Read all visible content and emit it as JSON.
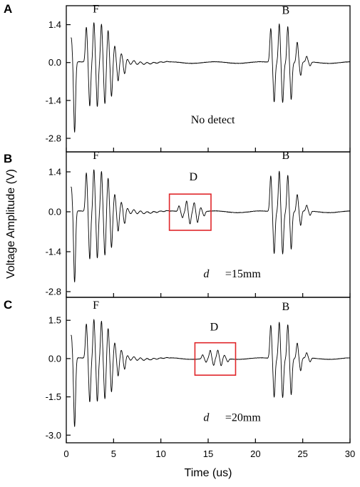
{
  "chart_data": {
    "type": "line",
    "xlabel": "Time (us)",
    "ylabel": "Voltage Amplitude (V)",
    "xlim": [
      0,
      30
    ],
    "xticks": [
      0,
      5,
      10,
      15,
      20,
      25,
      30
    ],
    "xtick_labels": [
      "0",
      "5",
      "10",
      "15",
      "20",
      "25",
      "30"
    ],
    "panels": [
      {
        "letter": "A",
        "ylim": [
          -3.3,
          2.1
        ],
        "yticks": [
          1.4,
          0.0,
          -1.4,
          -2.8
        ],
        "ytick_labels": [
          "1.4",
          "0.0",
          "-1.4",
          "-2.8"
        ],
        "annotations": [
          {
            "text": "F",
            "x": 2.8,
            "y": 1.85
          },
          {
            "text": "B",
            "x": 22.8,
            "y": 1.8
          },
          {
            "text": "No detect",
            "x": 15.5,
            "y": -2.25
          }
        ],
        "front_echo": {
          "peaks": [
            {
              "t": 0.7,
              "pos": 0.9,
              "neg": -2.6
            },
            {
              "t": 2.3,
              "pos": 1.3,
              "neg": -1.6
            },
            {
              "t": 3.1,
              "pos": 1.5,
              "neg": -1.6
            },
            {
              "t": 3.9,
              "pos": 1.45,
              "neg": -1.5
            },
            {
              "t": 4.6,
              "pos": 1.2,
              "neg": -1.25
            },
            {
              "t": 5.3,
              "pos": 0.6,
              "neg": -0.7
            },
            {
              "t": 6.0,
              "pos": 0.3,
              "neg": -0.35
            }
          ]
        },
        "back_echo": {
          "peaks": [
            {
              "t": 21.8,
              "pos": 1.25,
              "neg": -1.45
            },
            {
              "t": 22.7,
              "pos": 1.45,
              "neg": -1.45
            },
            {
              "t": 23.6,
              "pos": 1.35,
              "neg": -1.35
            },
            {
              "t": 24.6,
              "pos": 0.75,
              "neg": -0.5
            },
            {
              "t": 25.6,
              "pos": 0.2,
              "neg": -0.15
            }
          ]
        }
      },
      {
        "letter": "B",
        "ylim": [
          -3.0,
          2.1
        ],
        "yticks": [
          1.4,
          0.0,
          -1.4,
          -2.8
        ],
        "ytick_labels": [
          "1.4",
          "0.0",
          "-1.4",
          "-2.8"
        ],
        "annotations": [
          {
            "text": "F",
            "x": 2.8,
            "y": 1.85
          },
          {
            "text": "D",
            "x": 13.0,
            "y": 1.1
          },
          {
            "text": "B",
            "x": 22.8,
            "y": 1.85
          },
          {
            "text": "d",
            "italic": true,
            "x": 14.5,
            "y": -2.3
          },
          {
            "text": "=15mm",
            "x": 16.8,
            "y": -2.3
          }
        ],
        "defect_box": {
          "x": [
            10.9,
            15.3
          ],
          "y": [
            -0.65,
            0.62
          ]
        },
        "front_echo": {
          "peaks": [
            {
              "t": 0.7,
              "pos": 0.85,
              "neg": -2.5
            },
            {
              "t": 2.3,
              "pos": 1.35,
              "neg": -1.65
            },
            {
              "t": 3.1,
              "pos": 1.5,
              "neg": -1.6
            },
            {
              "t": 3.9,
              "pos": 1.45,
              "neg": -1.5
            },
            {
              "t": 4.6,
              "pos": 1.2,
              "neg": -1.25
            },
            {
              "t": 5.3,
              "pos": 0.6,
              "neg": -0.7
            },
            {
              "t": 6.0,
              "pos": 0.3,
              "neg": -0.35
            }
          ]
        },
        "defect_echo": {
          "peaks": [
            {
              "t": 12.1,
              "pos": 0.2,
              "neg": -0.2
            },
            {
              "t": 12.9,
              "pos": 0.4,
              "neg": -0.4
            },
            {
              "t": 13.7,
              "pos": 0.35,
              "neg": -0.35
            },
            {
              "t": 14.4,
              "pos": 0.15,
              "neg": -0.15
            }
          ]
        },
        "back_echo": {
          "peaks": [
            {
              "t": 21.8,
              "pos": 1.25,
              "neg": -1.45
            },
            {
              "t": 22.7,
              "pos": 1.45,
              "neg": -1.45
            },
            {
              "t": 23.6,
              "pos": 1.3,
              "neg": -1.3
            },
            {
              "t": 24.6,
              "pos": 0.6,
              "neg": -0.5
            },
            {
              "t": 25.6,
              "pos": 0.2,
              "neg": -0.15
            }
          ]
        }
      },
      {
        "letter": "C",
        "ylim": [
          -3.3,
          2.4
        ],
        "yticks": [
          1.5,
          0.0,
          -1.5,
          -3.0
        ],
        "ytick_labels": [
          "1.5",
          "0.0",
          "-1.5",
          "-3.0"
        ],
        "annotations": [
          {
            "text": "F",
            "x": 2.8,
            "y": 1.95
          },
          {
            "text": "D",
            "x": 15.2,
            "y": 1.1
          },
          {
            "text": "B",
            "x": 22.8,
            "y": 1.9
          },
          {
            "text": "d",
            "italic": true,
            "x": 14.5,
            "y": -2.45
          },
          {
            "text": "=20mm",
            "x": 16.8,
            "y": -2.45
          }
        ],
        "defect_box": {
          "x": [
            13.6,
            17.9
          ],
          "y": [
            -0.65,
            0.62
          ]
        },
        "front_echo": {
          "peaks": [
            {
              "t": 0.7,
              "pos": 0.9,
              "neg": -2.7
            },
            {
              "t": 2.3,
              "pos": 1.35,
              "neg": -1.7
            },
            {
              "t": 3.1,
              "pos": 1.55,
              "neg": -1.65
            },
            {
              "t": 3.9,
              "pos": 1.5,
              "neg": -1.55
            },
            {
              "t": 4.6,
              "pos": 1.2,
              "neg": -1.3
            },
            {
              "t": 5.3,
              "pos": 0.6,
              "neg": -0.7
            },
            {
              "t": 6.0,
              "pos": 0.3,
              "neg": -0.35
            }
          ]
        },
        "defect_echo": {
          "peaks": [
            {
              "t": 14.6,
              "pos": 0.15,
              "neg": -0.15
            },
            {
              "t": 15.4,
              "pos": 0.3,
              "neg": -0.3
            },
            {
              "t": 16.2,
              "pos": 0.3,
              "neg": -0.3
            },
            {
              "t": 16.9,
              "pos": 0.12,
              "neg": -0.12
            }
          ]
        },
        "back_echo": {
          "peaks": [
            {
              "t": 21.8,
              "pos": 1.3,
              "neg": -1.5
            },
            {
              "t": 22.7,
              "pos": 1.45,
              "neg": -1.5
            },
            {
              "t": 23.6,
              "pos": 1.35,
              "neg": -1.4
            },
            {
              "t": 24.6,
              "pos": 0.6,
              "neg": -0.5
            },
            {
              "t": 25.6,
              "pos": 0.2,
              "neg": -0.15
            }
          ]
        }
      }
    ]
  },
  "colors": {
    "signal": "#000000",
    "defect_box": "#e0262a"
  }
}
